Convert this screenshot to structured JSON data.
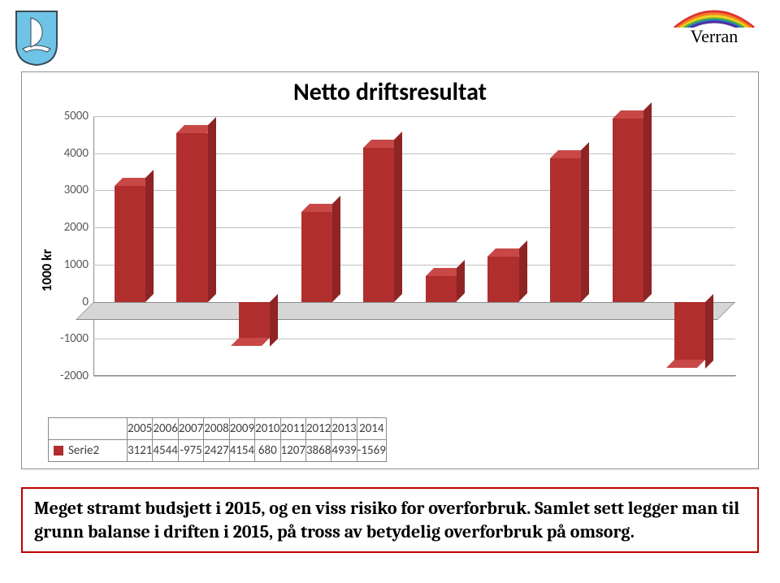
{
  "header": {
    "shield_bg": "#6fc3e6",
    "shield_border": "#3a4a58",
    "shield_sail": "#ffffff",
    "verran_text": "Verran",
    "rainbow": [
      "#e03030",
      "#f08020",
      "#f0d020",
      "#60b030",
      "#2080c0",
      "#5030a0",
      "#a02080"
    ]
  },
  "chart": {
    "type": "bar",
    "title": "Netto driftsresultat",
    "title_fontsize": 30,
    "ylabel": "1000 kr",
    "ylabel_fontsize": 17,
    "ylim": [
      -2000,
      5000
    ],
    "ytick_step": 1000,
    "yticks": [
      -2000,
      -1000,
      0,
      1000,
      2000,
      3000,
      4000,
      5000
    ],
    "categories": [
      "2005",
      "2006",
      "2007",
      "2008",
      "2009",
      "2010",
      "2011",
      "2012",
      "2013",
      "2014"
    ],
    "series_name": "Serie2",
    "values": [
      3121,
      4544,
      -975,
      2427,
      4154,
      680,
      1207,
      3868,
      4939,
      -1569
    ],
    "bar_color": "#b02e2e",
    "bar_top_color": "#c84848",
    "bar_side_color": "#8e2424",
    "floor_color": "#d6d6d6",
    "grid_color": "#c0c0c0",
    "border_color": "#8a8a8a",
    "background_color": "#ffffff",
    "tick_font_color": "#5a5a5a",
    "tick_fontsize": 15
  },
  "footer": {
    "text": "Meget stramt budsjett i 2015, og en viss risiko for overforbruk. Samlet sett legger man til grunn balanse i driften i 2015, på tross av betydelig overforbruk på omsorg.",
    "border_color": "#c00000",
    "font_family": "Cambria, Georgia, serif",
    "font_size": 22
  }
}
